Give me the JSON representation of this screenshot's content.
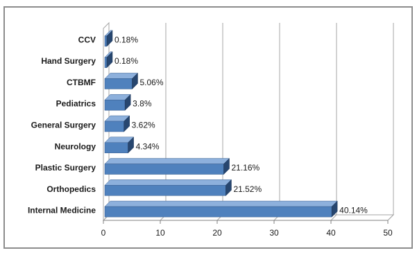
{
  "chart_data": {
    "type": "bar",
    "orientation": "horizontal",
    "style": "3d",
    "categories": [
      "CCV",
      "Hand Surgery",
      "CTBMF",
      "Pediatrics",
      "General Surgery",
      "Neurology",
      "Plastic Surgery",
      "Orthopedics",
      "Internal Medicine"
    ],
    "values": [
      0.18,
      0.18,
      5.06,
      3.8,
      3.62,
      4.34,
      21.16,
      21.52,
      40.14
    ],
    "data_labels": [
      "0.18%",
      "0.18%",
      "5.06%",
      "3.8%",
      "3.62%",
      "4.34%",
      "21.16%",
      "21.52%",
      "40.14%"
    ],
    "xlim": [
      0,
      50
    ],
    "x_ticks": [
      0,
      10,
      20,
      30,
      40,
      50
    ],
    "x_tick_labels": [
      "0",
      "10",
      "20",
      "30",
      "40",
      "50"
    ],
    "title": "",
    "xlabel": "",
    "ylabel": "",
    "grid": "vertical",
    "legend": "none",
    "colors": {
      "bar_front": "#4f81bd",
      "bar_top": "#8db0dc",
      "bar_side": "#27466f",
      "gridline": "#a6a6a6",
      "frame": "#8c8c8c"
    }
  }
}
